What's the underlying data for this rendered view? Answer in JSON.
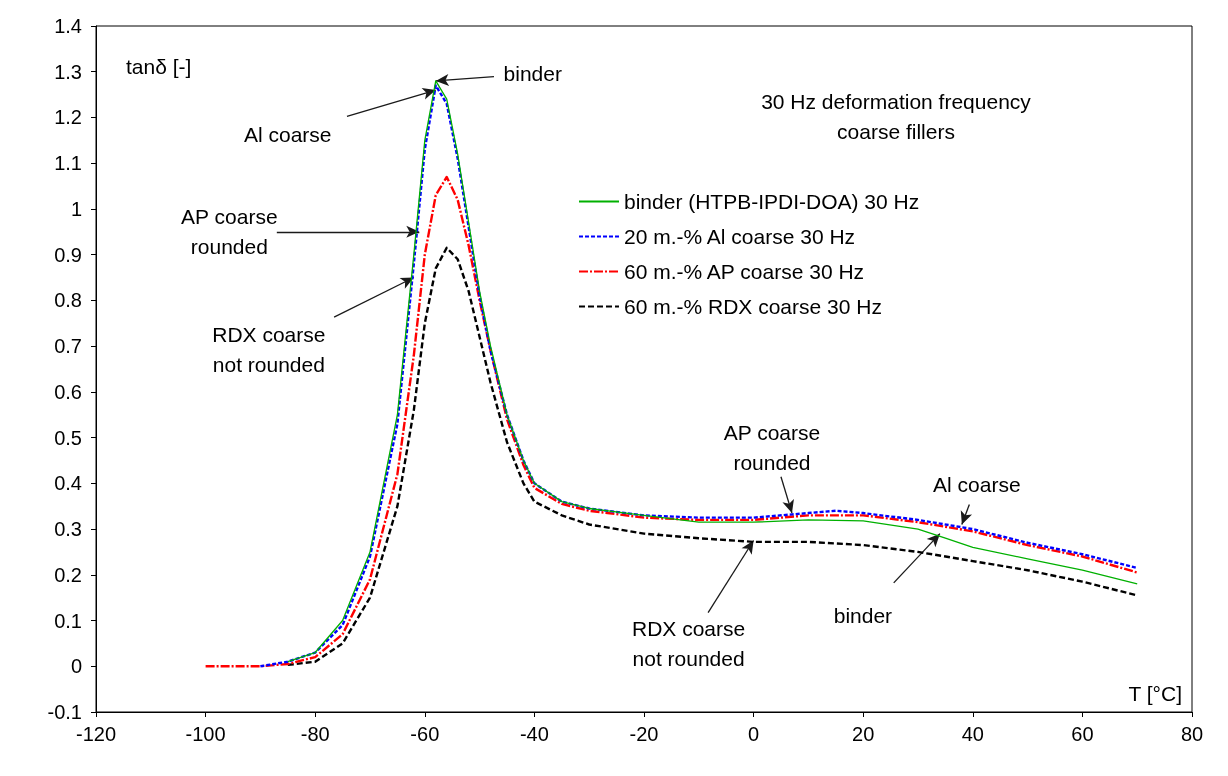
{
  "chart_data": {
    "type": "line",
    "xlabel": "T [°C]",
    "ylabel": "tanδ [-]",
    "xlim": [
      -120,
      80
    ],
    "xticks": [
      -120,
      -100,
      -80,
      -60,
      -40,
      -20,
      0,
      20,
      40,
      60,
      80
    ],
    "ylim": [
      -0.1,
      1.4
    ],
    "yticks": [
      -0.1,
      0,
      0.1,
      0.2,
      0.3,
      0.4,
      0.5,
      0.6,
      0.7,
      0.8,
      0.9,
      1,
      1.1,
      1.2,
      1.3,
      1.4
    ],
    "grid": false,
    "legend": "right",
    "marker": "none",
    "series": [
      {
        "name": "binder (HTPB-IPDI-DOA) 30 Hz",
        "color": "#00b000",
        "line_style": "solid",
        "x": [
          -85,
          -80,
          -75,
          -70,
          -65,
          -62,
          -60,
          -58,
          -56,
          -54,
          -52,
          -50,
          -48,
          -45,
          -42,
          -40,
          -35,
          -30,
          -20,
          -10,
          0,
          10,
          20,
          30,
          35,
          40,
          50,
          60,
          70
        ],
        "values": [
          0.01,
          0.03,
          0.1,
          0.25,
          0.55,
          0.9,
          1.15,
          1.28,
          1.24,
          1.12,
          0.97,
          0.82,
          0.7,
          0.55,
          0.45,
          0.4,
          0.36,
          0.345,
          0.33,
          0.315,
          0.315,
          0.32,
          0.318,
          0.3,
          0.28,
          0.26,
          0.235,
          0.21,
          0.18
        ]
      },
      {
        "name": "20 m.-% Al coarse 30 Hz",
        "color": "#0000ff",
        "line_style": "dashed",
        "x": [
          -90,
          -85,
          -80,
          -75,
          -70,
          -65,
          -62,
          -60,
          -58,
          -56,
          -54,
          -52,
          -50,
          -48,
          -45,
          -42,
          -40,
          -35,
          -30,
          -20,
          -10,
          0,
          10,
          15,
          20,
          30,
          40,
          50,
          60,
          70
        ],
        "values": [
          0,
          0.01,
          0.03,
          0.09,
          0.24,
          0.53,
          0.88,
          1.13,
          1.27,
          1.23,
          1.11,
          0.96,
          0.81,
          0.69,
          0.55,
          0.45,
          0.4,
          0.36,
          0.345,
          0.33,
          0.325,
          0.325,
          0.335,
          0.34,
          0.335,
          0.32,
          0.3,
          0.27,
          0.245,
          0.215
        ]
      },
      {
        "name": "60 m.-% AP coarse 30 Hz",
        "color": "#ff0000",
        "line_style": "dashed",
        "x": [
          -100,
          -90,
          -85,
          -80,
          -75,
          -70,
          -65,
          -62,
          -60,
          -58,
          -56,
          -54,
          -52,
          -50,
          -48,
          -45,
          -42,
          -40,
          -35,
          -30,
          -20,
          -10,
          0,
          10,
          20,
          30,
          40,
          50,
          60,
          70
        ],
        "values": [
          0,
          0,
          0.005,
          0.02,
          0.07,
          0.19,
          0.42,
          0.68,
          0.9,
          1.03,
          1.07,
          1.02,
          0.92,
          0.8,
          0.69,
          0.54,
          0.44,
          0.39,
          0.355,
          0.34,
          0.325,
          0.32,
          0.32,
          0.33,
          0.33,
          0.315,
          0.295,
          0.265,
          0.24,
          0.205
        ]
      },
      {
        "name": "60 m.-% RDX coarse 30 Hz",
        "color": "#000000",
        "line_style": "dashed",
        "x": [
          -85,
          -80,
          -75,
          -70,
          -65,
          -62,
          -60,
          -58,
          -56,
          -54,
          -52,
          -50,
          -48,
          -45,
          -42,
          -40,
          -35,
          -30,
          -20,
          -10,
          0,
          10,
          20,
          30,
          40,
          50,
          60,
          70
        ],
        "values": [
          0.003,
          0.01,
          0.05,
          0.15,
          0.35,
          0.56,
          0.75,
          0.87,
          0.915,
          0.89,
          0.82,
          0.72,
          0.62,
          0.49,
          0.4,
          0.36,
          0.33,
          0.31,
          0.29,
          0.28,
          0.272,
          0.272,
          0.265,
          0.25,
          0.23,
          0.21,
          0.185,
          0.155
        ]
      }
    ],
    "annotations": [
      "30 Hz deformation frequency\ncoarse fillers",
      {
        "text": "binder",
        "x": -58,
        "y": 1.28
      },
      {
        "text": "Al coarse",
        "x": -58,
        "y": 1.26
      },
      {
        "text": "AP coarse\nrounded",
        "x": -61,
        "y": 0.95
      },
      {
        "text": "RDX coarse\nnot rounded",
        "x": -62,
        "y": 0.85
      },
      {
        "text": "AP coarse\nrounded",
        "x": 7,
        "y": 0.335
      },
      {
        "text": "Al coarse",
        "x": 38,
        "y": 0.31
      },
      {
        "text": "RDX coarse\nnot rounded",
        "x": 0,
        "y": 0.275
      },
      {
        "text": "binder",
        "x": 34,
        "y": 0.29
      }
    ]
  }
}
